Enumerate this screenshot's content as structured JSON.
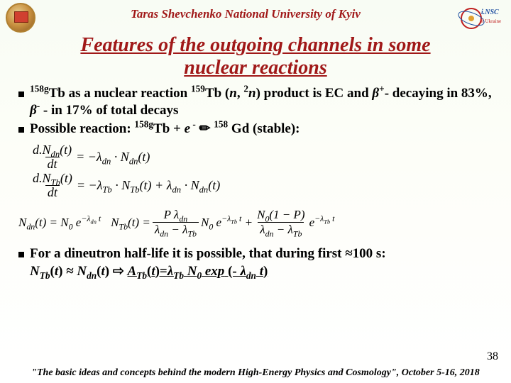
{
  "header": {
    "university": "Taras Shevchenko National University of Kyiv"
  },
  "title_line1": "Features of the outgoing channels in some",
  "title_line2": "nuclear reactions",
  "bullets": {
    "b1_html": "<sup>158g</sup>Tb as a nuclear reaction <sup>159</sup>Tb (<i>n</i>, <sup>2</sup><i>n</i>) product is EC and <i>β</i><sup>+</sup>- decaying in 83%, <i>β</i><sup>-</sup> - in 17% of total decays",
    "b2_html": "Possible reaction: <sup>158g</sup>Tb + <i>e</i><sup>&nbsp;-</sup> <span class='arrow'>✏</span> <sup>158</sup> Gd (stable):"
  },
  "equations": {
    "eq1": {
      "lhs_num": "d.N<sub>dn</sub>(t)",
      "lhs_den": "dt",
      "rhs": "= −λ<sub>dn</sub> · N<sub>dn</sub>(t)"
    },
    "eq2": {
      "lhs_num": "d.N<sub>Tb</sub>(t)",
      "lhs_den": "dt",
      "rhs": "= −λ<sub>Tb</sub> · N<sub>Tb</sub>(t) + λ<sub>dn</sub> · N<sub>dn</sub>(t)"
    },
    "eq3a": "N<sub>dn</sub>(t) = N<sub>0</sub> e<sup>−λ<sub>dn</sub> t</sup>",
    "eq3b_lhs": "N<sub>Tb</sub>(t) = ",
    "eq3b_f1_num": "P λ<sub>dn</sub>",
    "eq3b_f1_den": "λ<sub>dn</sub> − λ<sub>Tb</sub>",
    "eq3b_mid": " N<sub>0</sub> e<sup>−λ<sub>Tb</sub> t</sup> + ",
    "eq3b_f2_num": "N<sub>0</sub>(1 − P)",
    "eq3b_f2_den": "λ<sub>dn</sub> − λ<sub>Tb</sub>",
    "eq3b_tail": " e<sup>−λ<sub>Tb</sub> t</sup>"
  },
  "bullet3": {
    "line1": "For a dineutron half-life it is possible, that during first ≈100 s:",
    "line2_html": "<i>N<sub>Tb</sub></i>(<i>t</i>) ≈ <i>N<sub>dn</sub></i>(<i>t</i>) <span class='arrow'>⇨</span> <span class='underline'><i>A<sub>Tb</sub></i>(<i>t</i>)=<i>λ<sub>Tb</sub> N<sub>0</sub> exp</i> (- <i>λ<sub>dn</sub> t</i>)</span>"
  },
  "page_number": "38",
  "footer": "\"The basic ideas and concepts behind the modern High-Energy Physics and Cosmology\", October 5-16, 2018",
  "colors": {
    "accent_red": "#a01818",
    "bg_top": "#f8fcf4"
  }
}
